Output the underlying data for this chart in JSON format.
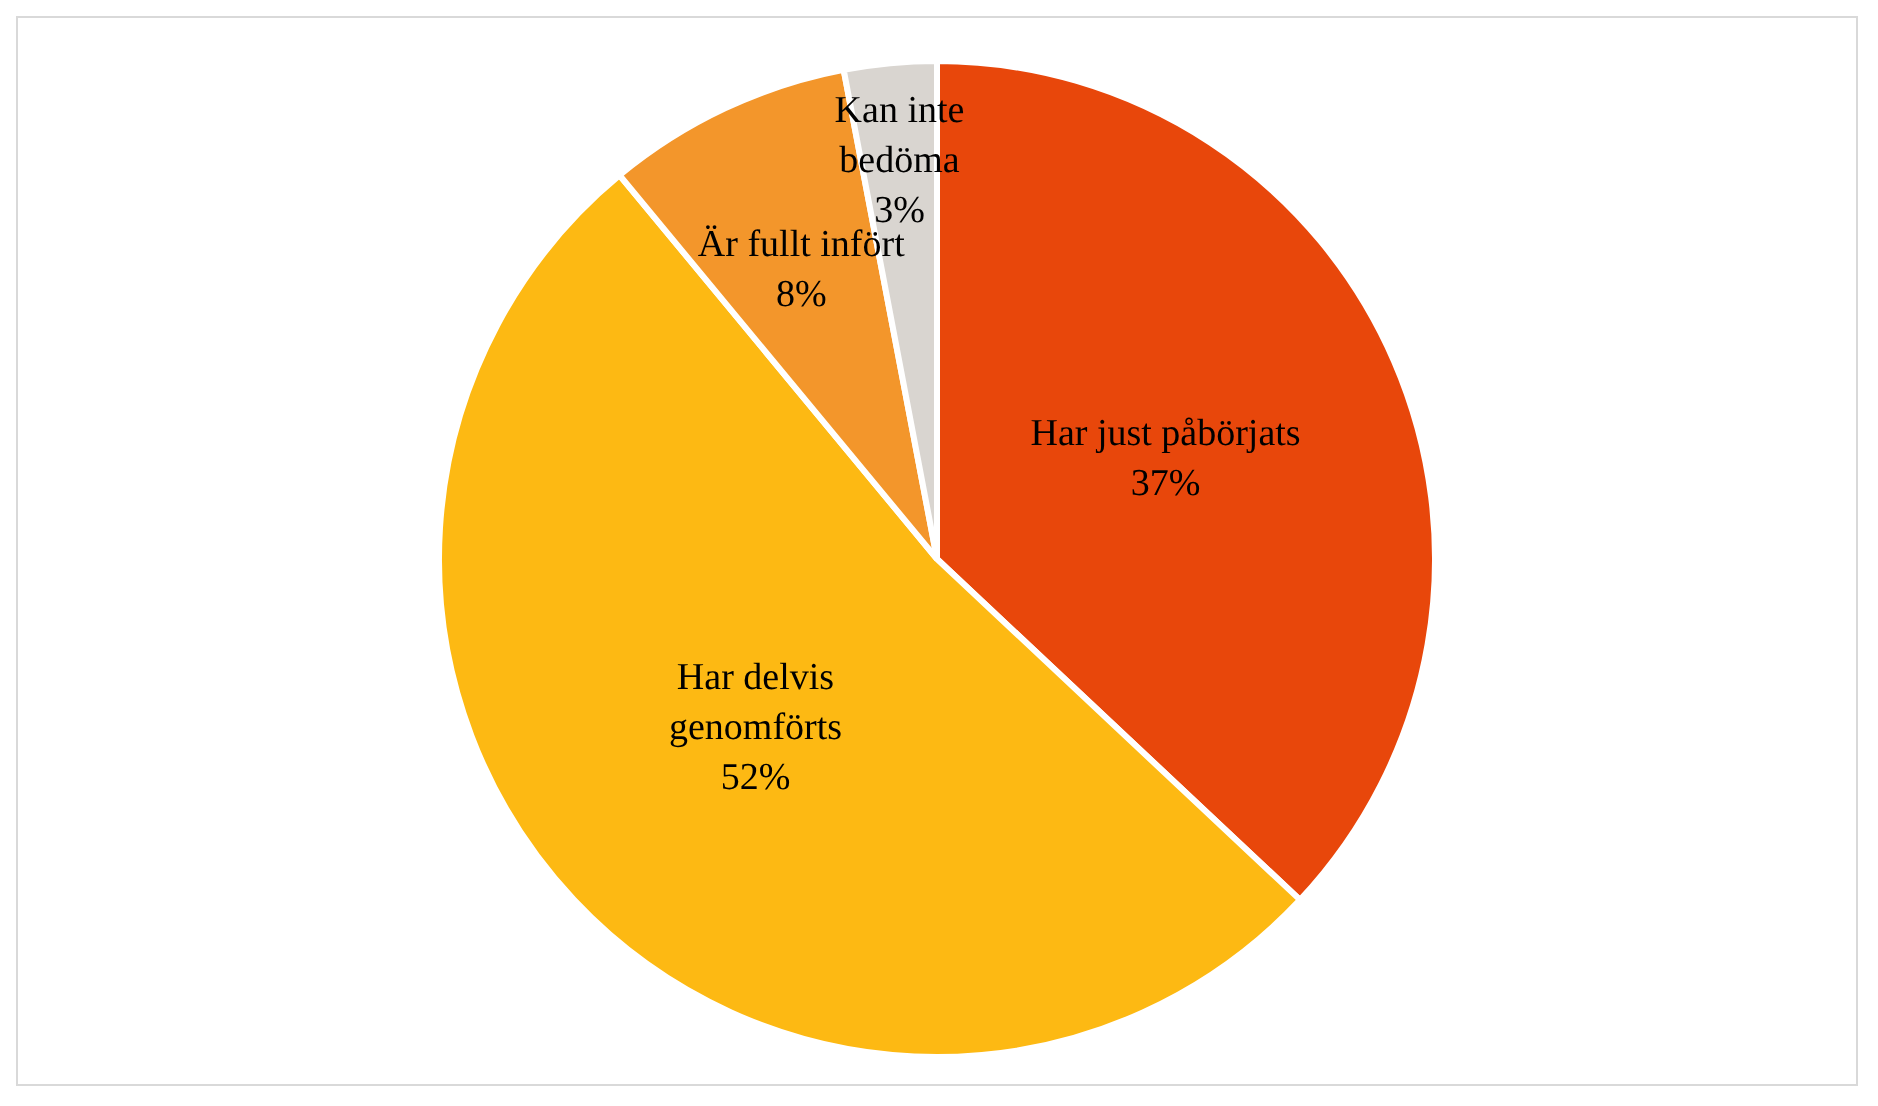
{
  "chart_data": {
    "type": "pie",
    "categories": [
      "Har just påbörjats",
      "Har delvis genomförts",
      "Är fullt infört",
      "Kan inte bedöma"
    ],
    "values": [
      37,
      52,
      8,
      3
    ],
    "value_labels": [
      "37%",
      "52%",
      "8%",
      "3%"
    ],
    "colors": [
      "#e8470b",
      "#fdb913",
      "#f3962b",
      "#d9d5d0"
    ],
    "legend": false
  }
}
